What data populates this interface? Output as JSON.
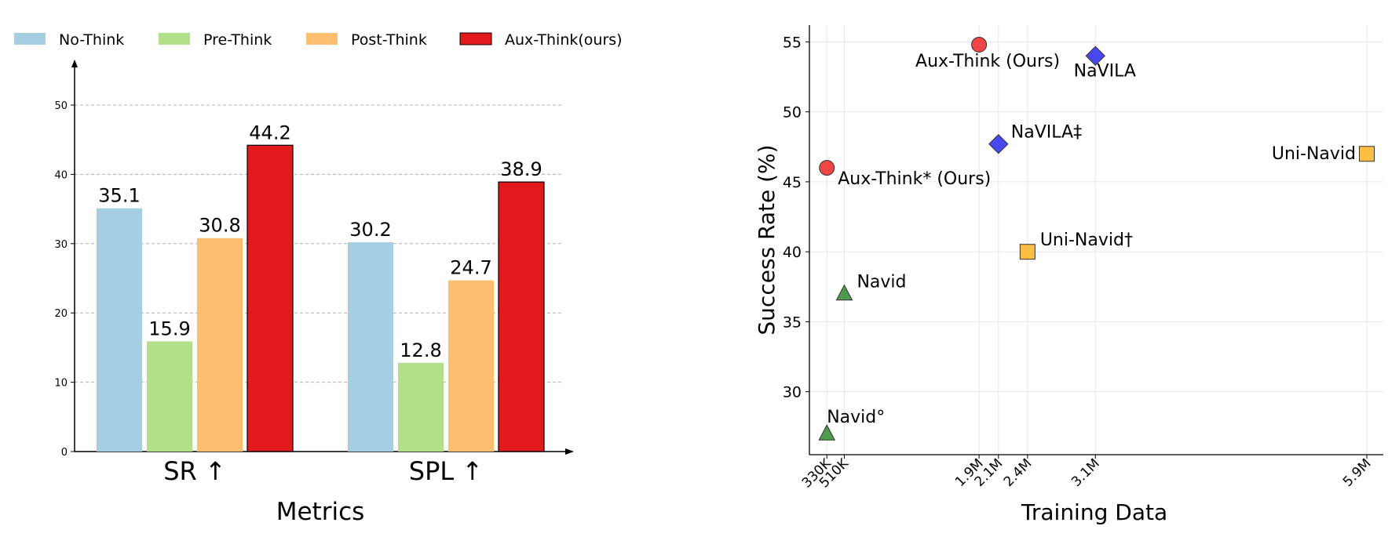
{
  "chart_data": [
    {
      "type": "bar",
      "categories": [
        "SR ↑",
        "SPL ↑"
      ],
      "series": [
        {
          "name": "No-Think",
          "values": [
            35.1,
            30.2
          ],
          "color": "#a6cee3"
        },
        {
          "name": "Pre-Think",
          "values": [
            15.9,
            12.8
          ],
          "color": "#b2df8a"
        },
        {
          "name": "Post-Think",
          "values": [
            30.8,
            24.7
          ],
          "color": "#fdbf6f"
        },
        {
          "name": "Aux-Think(ours)",
          "values": [
            44.2,
            38.9
          ],
          "color": "#e31a1c"
        }
      ],
      "xlabel": "Metrics",
      "ylabel": "",
      "ylim": [
        0,
        55
      ],
      "yticks": [
        0,
        10,
        20,
        30,
        40,
        50
      ],
      "grid": "y-dashed",
      "legend": "top"
    },
    {
      "type": "scatter",
      "xlabel": "Training Data",
      "ylabel": "Success Rate (%)",
      "ylim": [
        25.5,
        56.2
      ],
      "yticks": [
        30,
        35,
        40,
        45,
        50,
        55
      ],
      "xticks": [
        {
          "value": 330,
          "label": "330K"
        },
        {
          "value": 510,
          "label": "510K"
        },
        {
          "value": 1900,
          "label": "1.9M"
        },
        {
          "value": 2100,
          "label": "2.1M"
        },
        {
          "value": 2400,
          "label": "2.4M"
        },
        {
          "value": 3100,
          "label": "3.1M"
        },
        {
          "value": 5900,
          "label": "5.9M"
        }
      ],
      "xlim": [
        150,
        6070
      ],
      "grid": true,
      "points": [
        {
          "label": "Aux-Think (Ours)",
          "x": 1900,
          "y": 54.8,
          "marker": "circle",
          "color": "#f04545",
          "label_pos": "below-left"
        },
        {
          "label": "NaVILA",
          "x": 3100,
          "y": 54.0,
          "marker": "diamond",
          "color": "#4848f0",
          "label_pos": "below"
        },
        {
          "label": "NaVILA‡",
          "x": 2100,
          "y": 47.7,
          "marker": "diamond",
          "color": "#4848f0",
          "label_pos": "above-right"
        },
        {
          "label": "Uni-Navid",
          "x": 5900,
          "y": 47.0,
          "marker": "square",
          "color": "#fbbd44",
          "label_pos": "left"
        },
        {
          "label": "Aux-Think* (Ours)",
          "x": 330,
          "y": 46.0,
          "marker": "circle",
          "color": "#f04545",
          "label_pos": "below-right"
        },
        {
          "label": "Uni-Navid†",
          "x": 2400,
          "y": 40.0,
          "marker": "square",
          "color": "#fbbd44",
          "label_pos": "above-right"
        },
        {
          "label": "Navid",
          "x": 510,
          "y": 37.0,
          "marker": "triangle",
          "color": "#4f9a4f",
          "label_pos": "above-right"
        },
        {
          "label": "Navid°",
          "x": 330,
          "y": 27.0,
          "marker": "triangle",
          "color": "#4f9a4f",
          "label_pos": "above"
        }
      ]
    }
  ]
}
